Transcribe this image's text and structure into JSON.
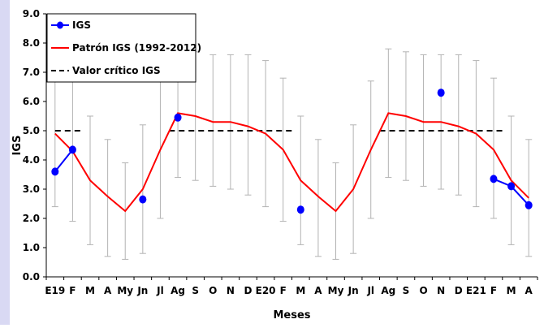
{
  "chart_data": {
    "type": "line",
    "xlabel": "Meses",
    "ylabel": "IGS",
    "ylim": [
      0,
      9
    ],
    "yticks": [
      "0.0",
      "1.0",
      "2.0",
      "3.0",
      "4.0",
      "5.0",
      "6.0",
      "7.0",
      "8.0",
      "9.0"
    ],
    "categories": [
      "E19",
      "F",
      "M",
      "A",
      "My",
      "Jn",
      "Jl",
      "Ag",
      "S",
      "O",
      "N",
      "D",
      "E20",
      "F",
      "M",
      "A",
      "My",
      "Jn",
      "Jl",
      "Ag",
      "S",
      "O",
      "N",
      "D",
      "E21",
      "F",
      "M",
      "A"
    ],
    "legend": {
      "position": "top-left",
      "entries": [
        "IGS",
        "Patrón IGS (1992-2012)",
        "Valor crítico IGS"
      ]
    },
    "series": [
      {
        "name": "IGS",
        "color": "#0000ff",
        "marker": "circle",
        "values": [
          3.6,
          4.35,
          null,
          null,
          null,
          2.65,
          null,
          5.45,
          null,
          null,
          null,
          null,
          null,
          null,
          2.3,
          null,
          null,
          null,
          null,
          null,
          null,
          null,
          6.3,
          null,
          null,
          3.35,
          3.1,
          2.45
        ]
      },
      {
        "name": "Patrón IGS (1992-2012)",
        "color": "#ff0000",
        "values": [
          4.9,
          4.3,
          3.3,
          2.75,
          2.25,
          3.0,
          4.35,
          5.6,
          5.5,
          5.3,
          5.3,
          5.15,
          4.9,
          4.35,
          3.3,
          2.75,
          2.25,
          3.0,
          4.35,
          5.6,
          5.5,
          5.3,
          5.3,
          5.15,
          4.9,
          4.35,
          3.3,
          2.7
        ],
        "error_low": [
          2.4,
          1.9,
          1.1,
          0.7,
          0.6,
          0.8,
          2.0,
          3.4,
          3.3,
          3.1,
          3.0,
          2.8,
          2.4,
          1.9,
          1.1,
          0.7,
          0.6,
          0.8,
          2.0,
          3.4,
          3.3,
          3.1,
          3.0,
          2.8,
          2.4,
          2.0,
          1.1,
          0.7
        ],
        "error_high": [
          7.4,
          6.8,
          5.5,
          4.7,
          3.9,
          5.2,
          6.7,
          7.8,
          7.7,
          7.6,
          7.6,
          7.6,
          7.4,
          6.8,
          5.5,
          4.7,
          3.9,
          5.2,
          6.7,
          7.8,
          7.7,
          7.6,
          7.6,
          7.6,
          7.4,
          6.8,
          5.5,
          4.7
        ],
        "error_color": "#b3b3b3"
      },
      {
        "name": "Valor crítico IGS",
        "color": "#000000",
        "style": "dashed",
        "segments": [
          {
            "from": 0,
            "to": 1.5,
            "value": 5.0
          },
          {
            "from": 6.5,
            "to": 13.5,
            "value": 5.0
          },
          {
            "from": 18.5,
            "to": 25.5,
            "value": 5.0
          }
        ]
      }
    ],
    "grid": false
  }
}
